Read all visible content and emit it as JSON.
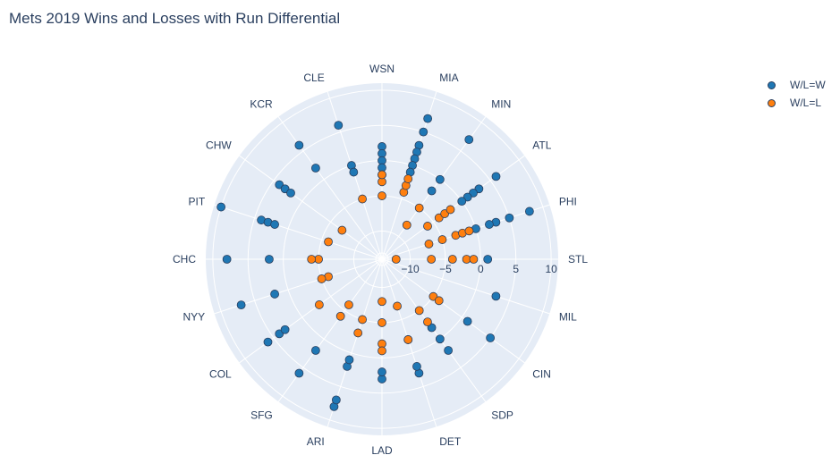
{
  "chart_data": {
    "type": "scatter",
    "subtype": "polar",
    "title": "Mets 2019 Wins and Losses with Run Differential",
    "angular_categories": [
      "STL",
      "PHI",
      "ATL",
      "MIN",
      "MIA",
      "WSN",
      "CLE",
      "KCR",
      "CHW",
      "PIT",
      "CHC",
      "NYY",
      "COL",
      "SFG",
      "ARI",
      "LAD",
      "DET",
      "SDP",
      "CIN",
      "MIL"
    ],
    "radial_range": [
      -14,
      11
    ],
    "radial_ticks": [
      -10,
      -5,
      0,
      5,
      10
    ],
    "radial_tick_labels": [
      "−10",
      "−5",
      "0",
      "5",
      "10"
    ],
    "grid": true,
    "legend_position": "top-right",
    "series": [
      {
        "name": "W/L=W",
        "color": "#1f77b4",
        "points": [
          {
            "theta": "STL",
            "r": 1
          },
          {
            "theta": "PHI",
            "r": 8
          },
          {
            "theta": "PHI",
            "r": 5
          },
          {
            "theta": "PHI",
            "r": 3
          },
          {
            "theta": "PHI",
            "r": 2
          },
          {
            "theta": "PHI",
            "r": 0
          },
          {
            "theta": "ATL",
            "r": 6
          },
          {
            "theta": "ATL",
            "r": 3
          },
          {
            "theta": "ATL",
            "r": 2
          },
          {
            "theta": "ATL",
            "r": 1
          },
          {
            "theta": "ATL",
            "r": 0
          },
          {
            "theta": "MIN",
            "r": 7
          },
          {
            "theta": "MIN",
            "r": 0
          },
          {
            "theta": "MIN",
            "r": -2
          },
          {
            "theta": "MIA",
            "r": 7
          },
          {
            "theta": "MIA",
            "r": 5
          },
          {
            "theta": "MIA",
            "r": 3
          },
          {
            "theta": "MIA",
            "r": 2
          },
          {
            "theta": "MIA",
            "r": 1
          },
          {
            "theta": "MIA",
            "r": 0
          },
          {
            "theta": "MIA",
            "r": -1
          },
          {
            "theta": "WSN",
            "r": 2
          },
          {
            "theta": "WSN",
            "r": 1
          },
          {
            "theta": "WSN",
            "r": 0
          },
          {
            "theta": "WSN",
            "r": -1
          },
          {
            "theta": "WSN",
            "r": -2
          },
          {
            "theta": "CLE",
            "r": 6
          },
          {
            "theta": "CLE",
            "r": 0
          },
          {
            "theta": "CLE",
            "r": -1
          },
          {
            "theta": "KCR",
            "r": 6
          },
          {
            "theta": "KCR",
            "r": 2
          },
          {
            "theta": "CHW",
            "r": 4
          },
          {
            "theta": "CHW",
            "r": 3
          },
          {
            "theta": "CHW",
            "r": 2
          },
          {
            "theta": "PIT",
            "r": 10
          },
          {
            "theta": "PIT",
            "r": 4
          },
          {
            "theta": "PIT",
            "r": 3
          },
          {
            "theta": "PIT",
            "r": 2
          },
          {
            "theta": "CHC",
            "r": 8
          },
          {
            "theta": "CHC",
            "r": 2
          },
          {
            "theta": "NYY",
            "r": 7
          },
          {
            "theta": "NYY",
            "r": 2
          },
          {
            "theta": "COL",
            "r": 6
          },
          {
            "theta": "COL",
            "r": 4
          },
          {
            "theta": "COL",
            "r": 3
          },
          {
            "theta": "SFG",
            "r": 6
          },
          {
            "theta": "SFG",
            "r": 2
          },
          {
            "theta": "ARI",
            "r": 8
          },
          {
            "theta": "ARI",
            "r": 7
          },
          {
            "theta": "ARI",
            "r": 2
          },
          {
            "theta": "ARI",
            "r": 1
          },
          {
            "theta": "LAD",
            "r": 3
          },
          {
            "theta": "LAD",
            "r": 2
          },
          {
            "theta": "DET",
            "r": 3
          },
          {
            "theta": "DET",
            "r": 2
          },
          {
            "theta": "DET",
            "r": -2
          },
          {
            "theta": "SDP",
            "r": 2
          },
          {
            "theta": "SDP",
            "r": 0
          },
          {
            "theta": "SDP",
            "r": -2
          },
          {
            "theta": "CIN",
            "r": 5
          },
          {
            "theta": "CIN",
            "r": 1
          },
          {
            "theta": "MIL",
            "r": 3
          }
        ]
      },
      {
        "name": "W/L=L",
        "color": "#ff7f0e",
        "points": [
          {
            "theta": "STL",
            "r": -12
          },
          {
            "theta": "STL",
            "r": -7
          },
          {
            "theta": "STL",
            "r": -4
          },
          {
            "theta": "STL",
            "r": -2
          },
          {
            "theta": "STL",
            "r": -1
          },
          {
            "theta": "PHI",
            "r": -7
          },
          {
            "theta": "PHI",
            "r": -5
          },
          {
            "theta": "PHI",
            "r": -3
          },
          {
            "theta": "PHI",
            "r": -2
          },
          {
            "theta": "PHI",
            "r": -1
          },
          {
            "theta": "ATL",
            "r": -6
          },
          {
            "theta": "ATL",
            "r": -4
          },
          {
            "theta": "ATL",
            "r": -3
          },
          {
            "theta": "ATL",
            "r": -2
          },
          {
            "theta": "MIN",
            "r": -8
          },
          {
            "theta": "MIN",
            "r": -5
          },
          {
            "theta": "MIA",
            "r": -4
          },
          {
            "theta": "MIA",
            "r": -3
          },
          {
            "theta": "MIA",
            "r": -2
          },
          {
            "theta": "WSN",
            "r": -5
          },
          {
            "theta": "WSN",
            "r": -3
          },
          {
            "theta": "WSN",
            "r": -2
          },
          {
            "theta": "CLE",
            "r": -5
          },
          {
            "theta": "CHW",
            "r": -7
          },
          {
            "theta": "PIT",
            "r": -6
          },
          {
            "theta": "CHC",
            "r": -5
          },
          {
            "theta": "CHC",
            "r": -4
          },
          {
            "theta": "NYY",
            "r": -6
          },
          {
            "theta": "NYY",
            "r": -5
          },
          {
            "theta": "COL",
            "r": -3
          },
          {
            "theta": "SFG",
            "r": -6
          },
          {
            "theta": "SFG",
            "r": -4
          },
          {
            "theta": "ARI",
            "r": -5
          },
          {
            "theta": "ARI",
            "r": -3
          },
          {
            "theta": "LAD",
            "r": -8
          },
          {
            "theta": "LAD",
            "r": -5
          },
          {
            "theta": "LAD",
            "r": -2
          },
          {
            "theta": "LAD",
            "r": -1
          },
          {
            "theta": "DET",
            "r": -7
          },
          {
            "theta": "DET",
            "r": -2
          },
          {
            "theta": "SDP",
            "r": -5
          },
          {
            "theta": "SDP",
            "r": -3
          },
          {
            "theta": "CIN",
            "r": -5
          },
          {
            "theta": "CIN",
            "r": -4
          }
        ]
      }
    ]
  },
  "legend": {
    "items": [
      {
        "label": "W/L=W",
        "color": "#1f77b4"
      },
      {
        "label": "W/L=L",
        "color": "#ff7f0e"
      }
    ]
  },
  "colors": {
    "polar_bg": "#e5ecf6",
    "grid": "#ffffff",
    "text": "#2a3f5f",
    "marker_outline": "#2a3f5f"
  }
}
